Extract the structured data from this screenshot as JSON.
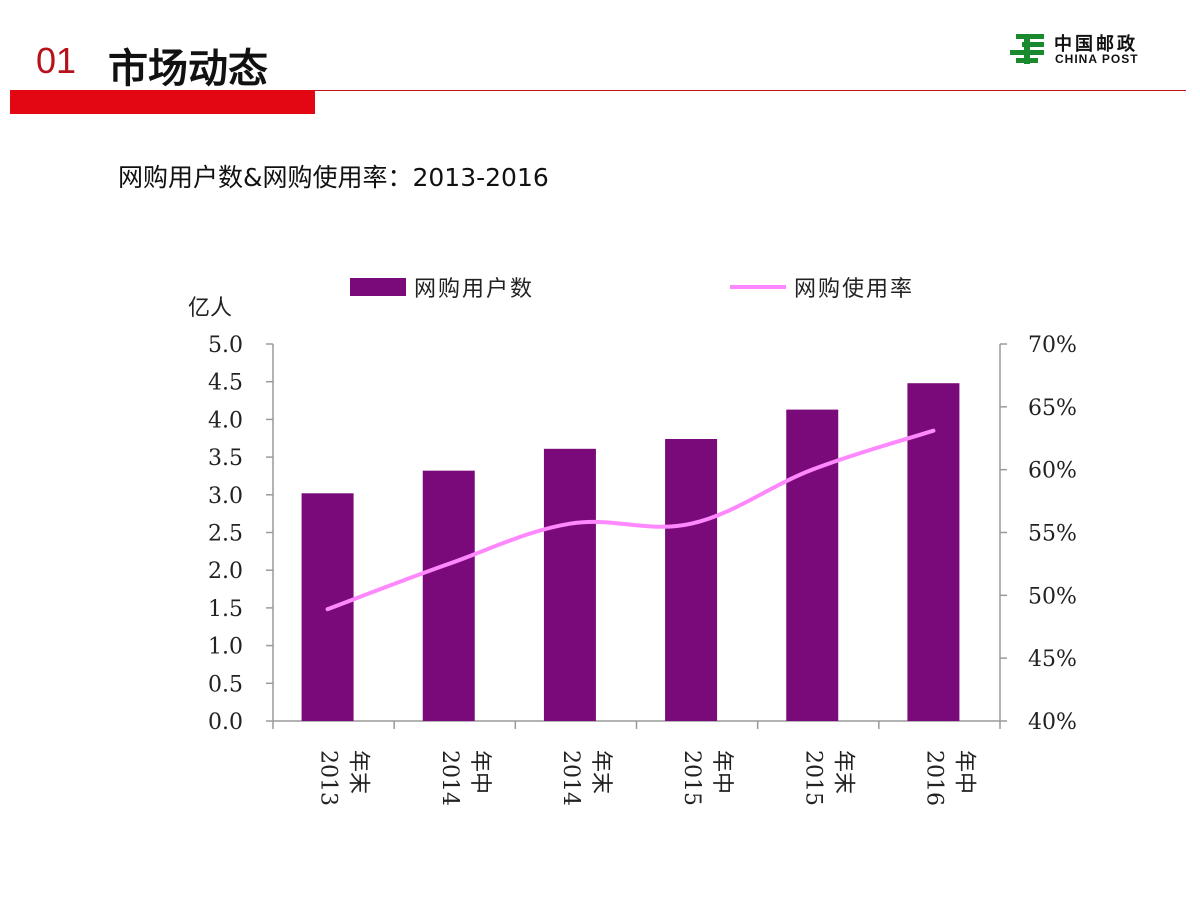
{
  "header": {
    "number": "01",
    "title": "市场动态"
  },
  "logo": {
    "cn": "中国邮政",
    "en": "CHINA POST"
  },
  "subtitle": "网购用户数&网购使用率：2013-2016",
  "colors": {
    "accent_red": "#e30613",
    "bar": "#7a0a7a",
    "line": "#ff88ff",
    "logo_green": "#1a8a2e"
  },
  "chart_data": {
    "type": "bar",
    "title": "",
    "ylabel": "亿人",
    "categories": [
      [
        "2013",
        "年末"
      ],
      [
        "2014",
        "年中"
      ],
      [
        "2014",
        "年末"
      ],
      [
        "2015",
        "年中"
      ],
      [
        "2015",
        "年末"
      ],
      [
        "2016",
        "年中"
      ]
    ],
    "series": [
      {
        "name": "网购用户数",
        "type": "bar",
        "axis": "left",
        "values": [
          3.02,
          3.32,
          3.61,
          3.74,
          4.13,
          4.48
        ]
      },
      {
        "name": "网购使用率",
        "type": "line",
        "axis": "right",
        "values": [
          48.9,
          52.5,
          55.7,
          55.7,
          60.0,
          63.1
        ]
      }
    ],
    "left_axis": {
      "ylim": [
        0,
        5.0
      ],
      "ticks": [
        "0.0",
        "0.5",
        "1.0",
        "1.5",
        "2.0",
        "2.5",
        "3.0",
        "3.5",
        "4.0",
        "4.5",
        "5.0"
      ]
    },
    "right_axis": {
      "ylim": [
        40,
        70
      ],
      "ticks": [
        "40%",
        "45%",
        "50%",
        "55%",
        "60%",
        "65%",
        "70%"
      ]
    },
    "legend_position": "top",
    "grid": false
  }
}
